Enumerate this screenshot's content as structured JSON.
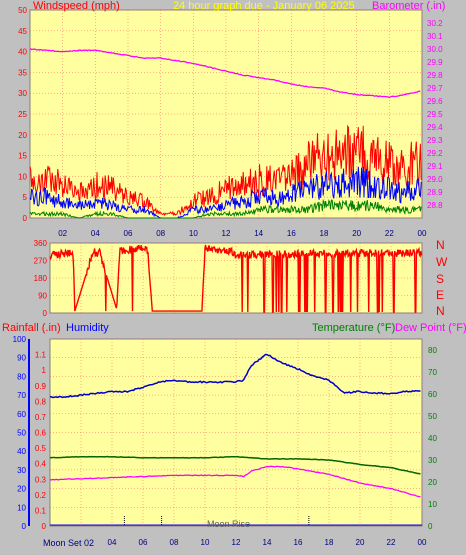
{
  "header": {
    "windspeed_label": "Windspeed (mph)",
    "title": "24 hour graph due - January 06 2025",
    "barometer_label": "Barometer (.in)"
  },
  "middle_header": {
    "rainfall_label": "Rainfall (.in)",
    "humidity_label": "Humidity",
    "temperature_label": "Temperature (°F)",
    "dewpoint_label": "Dew Point (°F)"
  },
  "direction_letters": [
    "N",
    "W",
    "S",
    "E",
    "N"
  ],
  "moon_labels": {
    "set": "Moon Set 02",
    "rise": "Moon Rise"
  },
  "colors": {
    "plot_bg": "#ffffa0",
    "frame": "#c0c0c0",
    "wind_gust": "#ff0000",
    "wind_avg": "#0000ff",
    "wind_low": "#008000",
    "barometer": "#ff00ff",
    "direction": "#ff0000",
    "humidity": "#0000cc",
    "temperature": "#006400",
    "dewpoint": "#ff00ff",
    "rain_axis": "#0000ff",
    "temp_axis": "#008000",
    "grid": "#ff6060"
  },
  "chart_data": [
    {
      "type": "line",
      "title": "24 hour graph due - January 06 2025",
      "x_ticks": [
        "02",
        "04",
        "06",
        "08",
        "10",
        "12",
        "14",
        "16",
        "18",
        "20",
        "22",
        "00"
      ],
      "xlim": [
        0,
        24
      ],
      "ylabel": "Windspeed (mph)",
      "ylim": [
        0,
        50
      ],
      "y_ticks": [
        0,
        5,
        10,
        15,
        20,
        25,
        30,
        35,
        40,
        45,
        50
      ],
      "y2label": "Barometer (.in)",
      "y2lim": [
        28.7,
        30.3
      ],
      "y2_ticks": [
        28.8,
        28.9,
        29.0,
        29.1,
        29.2,
        29.3,
        29.4,
        29.5,
        29.6,
        29.7,
        29.8,
        29.9,
        30.0,
        30.1,
        30.2
      ],
      "grid": true,
      "series": [
        {
          "name": "Barometer",
          "axis": "y2",
          "x": [
            0,
            1,
            2,
            3,
            4,
            5,
            6,
            7,
            8,
            9,
            10,
            11,
            12,
            13,
            14,
            15,
            16,
            17,
            18,
            19,
            20,
            21,
            22,
            23,
            24
          ],
          "values": [
            30.0,
            29.99,
            29.98,
            29.99,
            29.99,
            29.97,
            29.95,
            29.93,
            29.93,
            29.91,
            29.89,
            29.86,
            29.83,
            29.8,
            29.78,
            29.76,
            29.73,
            29.71,
            29.7,
            29.67,
            29.65,
            29.64,
            29.63,
            29.65,
            29.68
          ]
        },
        {
          "name": "Gust",
          "x": [
            0,
            1,
            2,
            3,
            4,
            5,
            6,
            7,
            8,
            9,
            10,
            11,
            12,
            13,
            14,
            15,
            16,
            17,
            18,
            19,
            20,
            21,
            22,
            23,
            24
          ],
          "values": [
            10,
            9,
            9,
            6,
            8,
            7,
            5,
            4,
            1,
            1,
            4,
            5,
            7,
            8,
            9,
            9,
            10,
            13,
            15,
            15,
            16,
            15,
            13,
            12,
            14
          ]
        },
        {
          "name": "Average",
          "x": [
            0,
            1,
            2,
            3,
            4,
            5,
            6,
            7,
            8,
            9,
            10,
            11,
            12,
            13,
            14,
            15,
            16,
            17,
            18,
            19,
            20,
            21,
            22,
            23,
            24
          ],
          "values": [
            5,
            5,
            4,
            3,
            4,
            3,
            2,
            2,
            0,
            0,
            2,
            2,
            3,
            4,
            5,
            5,
            6,
            7,
            8,
            8,
            9,
            8,
            7,
            6,
            7
          ]
        },
        {
          "name": "Low",
          "x": [
            0,
            1,
            2,
            3,
            4,
            5,
            6,
            7,
            8,
            9,
            10,
            11,
            12,
            13,
            14,
            15,
            16,
            17,
            18,
            19,
            20,
            21,
            22,
            23,
            24
          ],
          "values": [
            1,
            1,
            1,
            0,
            1,
            1,
            0,
            0,
            0,
            0,
            0,
            1,
            1,
            1,
            2,
            2,
            2,
            2,
            3,
            3,
            3,
            3,
            2,
            2,
            2
          ]
        }
      ]
    },
    {
      "type": "line",
      "x_ticks": [
        "02",
        "04",
        "06",
        "08",
        "10",
        "12",
        "14",
        "16",
        "18",
        "20",
        "22",
        "00"
      ],
      "xlim": [
        0,
        24
      ],
      "ylim": [
        0,
        360
      ],
      "y_ticks": [
        0,
        90,
        180,
        270,
        360
      ],
      "series": [
        {
          "name": "Wind Direction",
          "x": [
            0,
            0.3,
            1.5,
            1.6,
            2.8,
            3.0,
            3.2,
            4.3,
            4.5,
            5.8,
            6.0,
            6.3,
            6.6,
            7.0,
            9.8,
            10.0,
            11.6,
            12.0,
            24.0
          ],
          "values": [
            290,
            300,
            310,
            10,
            320,
            300,
            310,
            20,
            320,
            330,
            340,
            320,
            10,
            10,
            10,
            330,
            320,
            300,
            310
          ]
        }
      ]
    },
    {
      "type": "line",
      "x_ticks": [
        "02",
        "04",
        "06",
        "08",
        "10",
        "12",
        "14",
        "16",
        "18",
        "20",
        "22",
        "00"
      ],
      "xlim": [
        0,
        24
      ],
      "ylim": [
        0,
        100
      ],
      "y_ticks": [
        0,
        10,
        20,
        30,
        40,
        50,
        60,
        70,
        80,
        90,
        100
      ],
      "rain_ticks": [
        0,
        0.1,
        0.2,
        0.3,
        0.4,
        0.5,
        0.6,
        0.7,
        0.8,
        0.9,
        1,
        1.1
      ],
      "y2lim": [
        0,
        85
      ],
      "y2_ticks": [
        0,
        10,
        20,
        30,
        40,
        50,
        60,
        70,
        80
      ],
      "grid": true,
      "series": [
        {
          "name": "Humidity",
          "x": [
            0,
            1,
            2,
            3,
            4,
            5,
            6,
            7,
            8,
            9,
            10,
            11,
            11.8,
            12.5,
            13,
            14,
            15,
            16,
            17,
            18,
            19,
            20,
            21,
            22,
            23,
            24
          ],
          "values": [
            69,
            69,
            70,
            71,
            72,
            72,
            74,
            77,
            78,
            77,
            77,
            77,
            77,
            78,
            86,
            92,
            87,
            84,
            80,
            78,
            71,
            72,
            71,
            71,
            72,
            72
          ]
        },
        {
          "name": "Temperature",
          "axis": "y2",
          "x": [
            0,
            2,
            4,
            6,
            8,
            10,
            12,
            14,
            16,
            18,
            20,
            22,
            24
          ],
          "values": [
            31,
            31.5,
            31.5,
            31,
            31,
            31,
            31.5,
            30.5,
            30.5,
            30,
            28,
            26.5,
            23.5
          ]
        },
        {
          "name": "Dew Point",
          "axis": "y2",
          "x": [
            0,
            2,
            4,
            6,
            8,
            10,
            12,
            12.5,
            13,
            14,
            15,
            16,
            18,
            20,
            22,
            24
          ],
          "values": [
            21,
            21.5,
            22,
            22.5,
            23,
            23,
            23,
            22.5,
            25,
            27,
            27,
            26,
            23.5,
            19.5,
            17,
            13
          ]
        },
        {
          "name": "Rainfall",
          "x": [
            0,
            24
          ],
          "values": [
            0,
            0
          ]
        }
      ]
    }
  ]
}
